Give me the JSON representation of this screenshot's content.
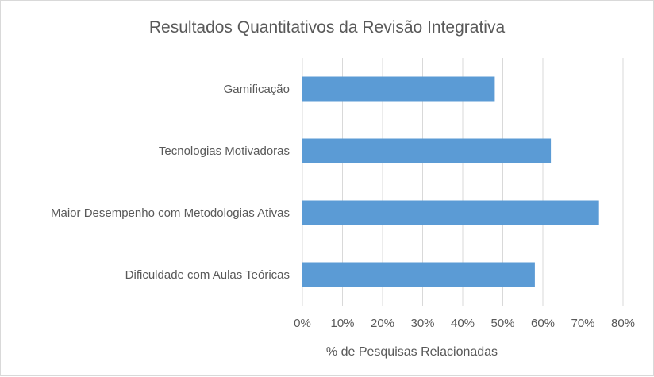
{
  "chart_data": {
    "type": "bar",
    "orientation": "horizontal",
    "title": "Resultados Quantitativos da Revisão Integrativa",
    "categories": [
      "Gamificação",
      "Tecnologias Motivadoras",
      "Maior Desempenho com Metodologias Ativas",
      "Dificuldade com Aulas Teóricas"
    ],
    "values": [
      0.48,
      0.62,
      0.74,
      0.58
    ],
    "xlabel": "% de Pesquisas Relacionadas",
    "ylabel": "",
    "xlim": [
      0,
      0.8
    ],
    "ticks": [
      "0%",
      "10%",
      "20%",
      "30%",
      "40%",
      "50%",
      "60%",
      "70%",
      "80%"
    ],
    "grid": true,
    "legend": "none",
    "bar_color": "#5b9bd5"
  }
}
